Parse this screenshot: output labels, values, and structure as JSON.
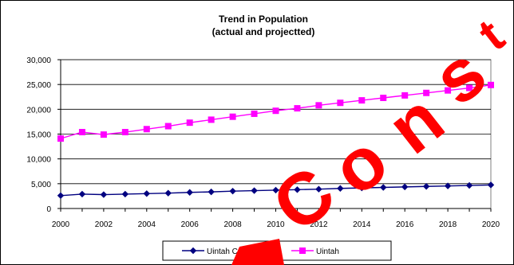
{
  "chart_data": {
    "type": "line",
    "title": "Trend in Population",
    "subtitle": "(actual and projectted)",
    "xlabel": "",
    "ylabel": "",
    "x": [
      2000,
      2001,
      2002,
      2003,
      2004,
      2005,
      2006,
      2007,
      2008,
      2009,
      2010,
      2011,
      2012,
      2013,
      2014,
      2015,
      2016,
      2017,
      2018,
      2019,
      2020
    ],
    "x_ticks": [
      "2000",
      "2002",
      "2004",
      "2006",
      "2008",
      "2010",
      "2012",
      "2014",
      "2016",
      "2018",
      "2020"
    ],
    "y_ticks": [
      "0",
      "5,000",
      "10,000",
      "15,000",
      "20,000",
      "25,000",
      "30,000"
    ],
    "ylim": [
      0,
      30000
    ],
    "grid": "horizontal",
    "legend": "bottom",
    "series": [
      {
        "name": "Uintah County",
        "color": "#000080",
        "marker": "diamond",
        "values": [
          2600,
          2900,
          2800,
          2900,
          3000,
          3100,
          3250,
          3350,
          3500,
          3600,
          3700,
          3800,
          3900,
          4050,
          4150,
          4250,
          4350,
          4450,
          4550,
          4650,
          4750
        ]
      },
      {
        "name": "Uintah",
        "color": "#ff00ff",
        "marker": "square",
        "values": [
          14100,
          15400,
          14900,
          15400,
          16000,
          16600,
          17300,
          17900,
          18500,
          19100,
          19700,
          20200,
          20800,
          21300,
          21800,
          22300,
          22800,
          23300,
          23800,
          24300,
          24900
        ]
      }
    ]
  },
  "watermark": {
    "text": "Cons",
    "color": "#ff0000"
  }
}
